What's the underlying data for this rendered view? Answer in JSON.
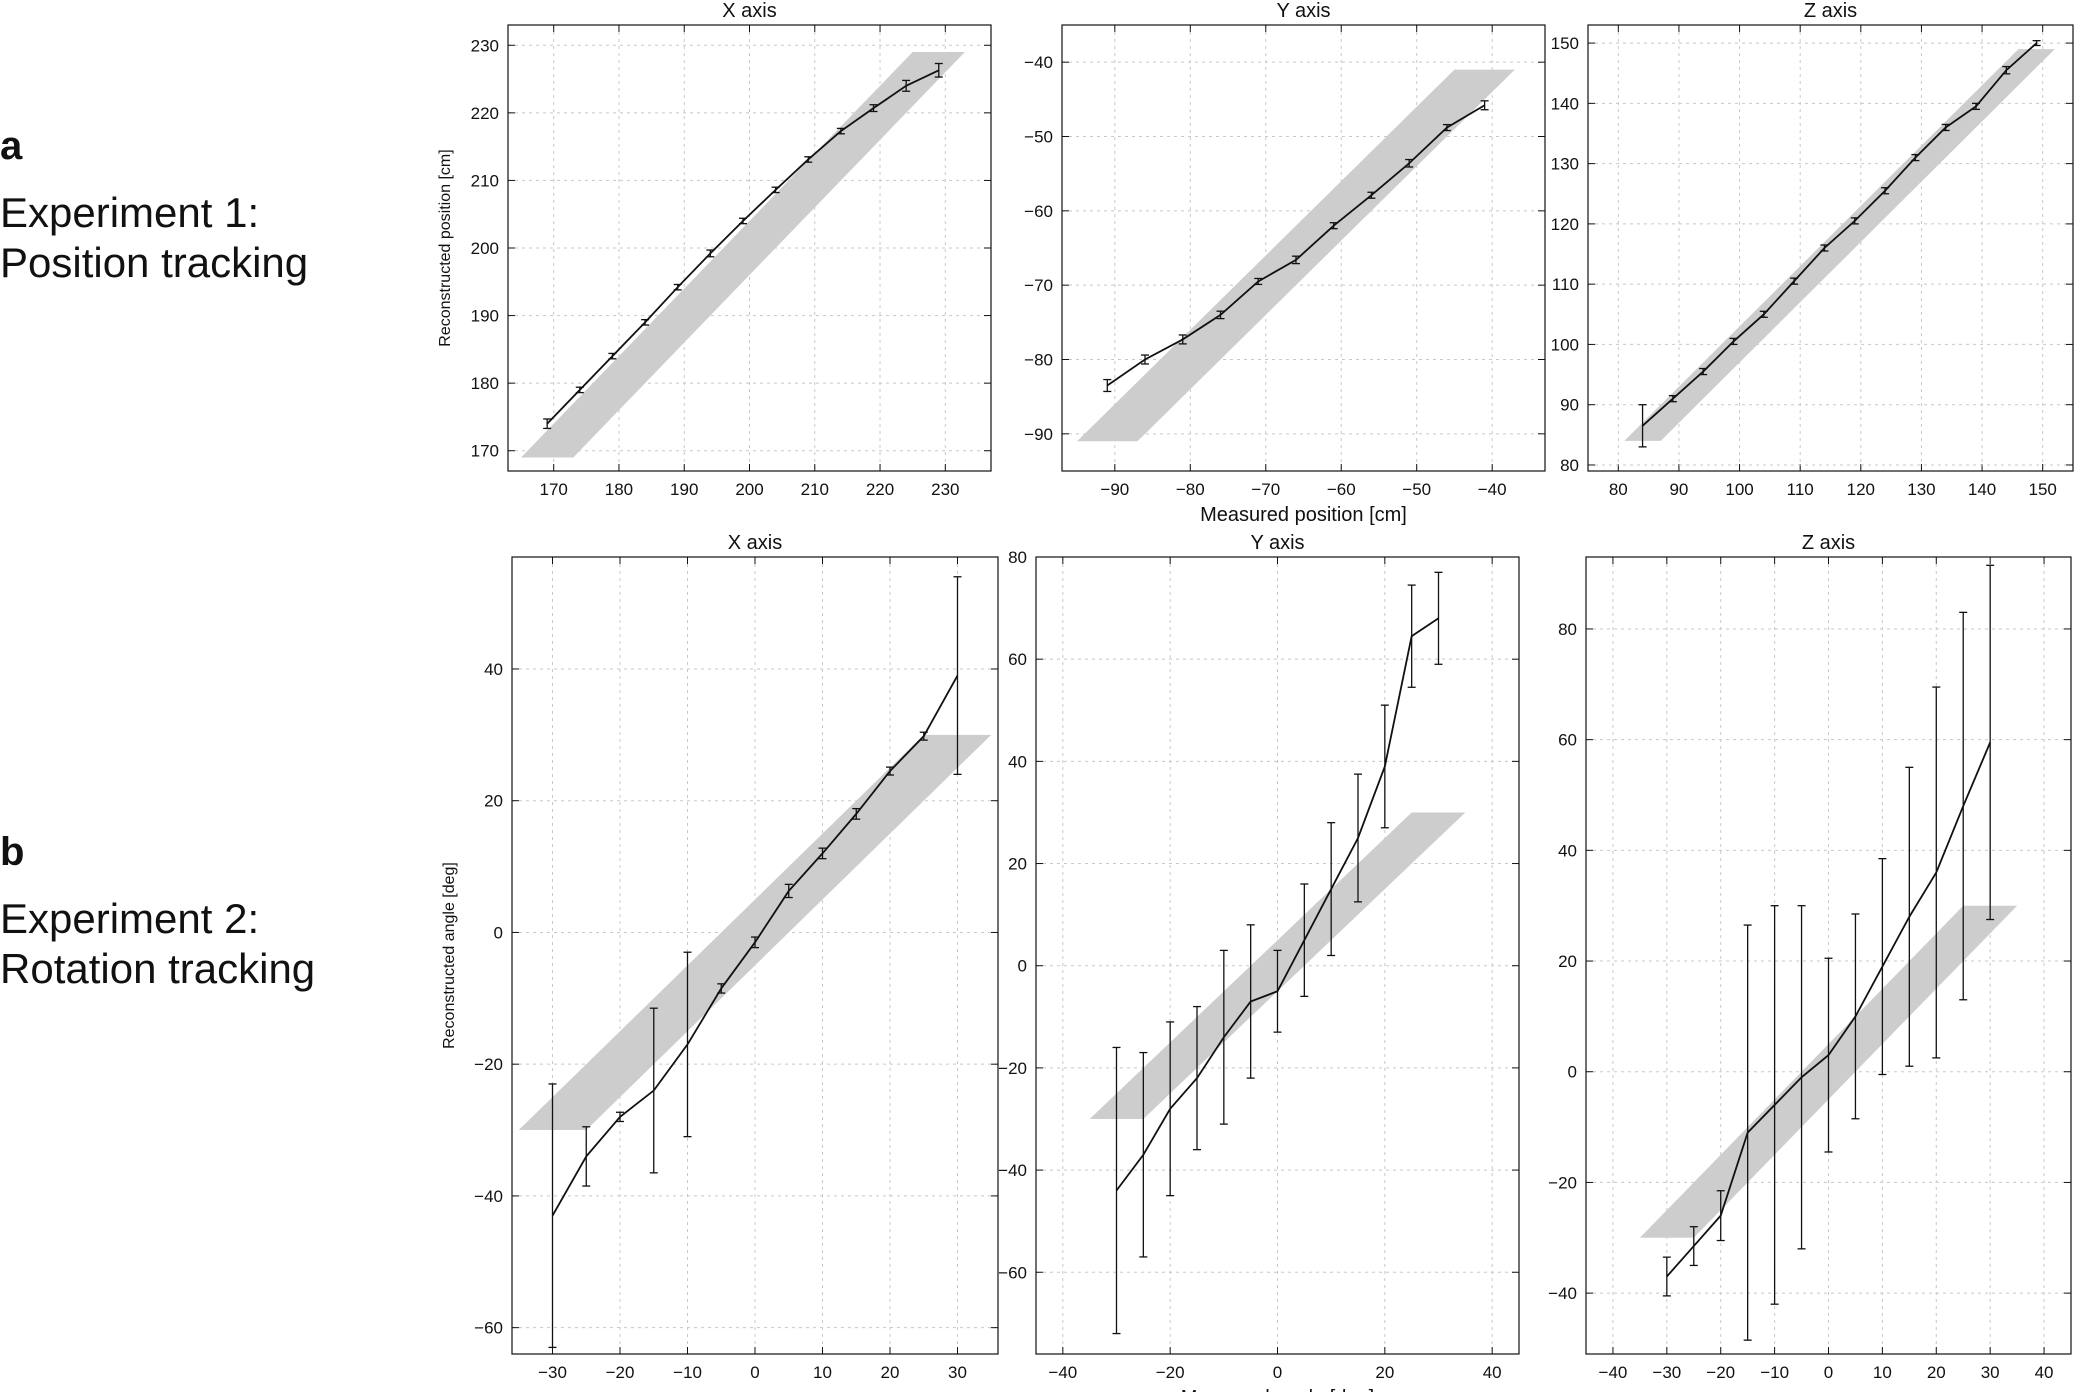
{
  "rows": [
    {
      "letter": "a",
      "line1": "Experiment 1:",
      "line2": "Position tracking"
    },
    {
      "letter": "b",
      "line1": "Experiment 2:",
      "line2": "Rotation tracking"
    }
  ],
  "chart_data": [
    {
      "type": "line",
      "title": "X axis",
      "ylabel": "Reconstructed position [cm]",
      "xlabel": "",
      "xlim": [
        163,
        237
      ],
      "ylim": [
        167,
        233
      ],
      "xticks": [
        170,
        180,
        190,
        200,
        210,
        220,
        230
      ],
      "yticks": [
        170,
        180,
        190,
        200,
        210,
        220,
        230
      ],
      "band": {
        "x": [
          169,
          229
        ],
        "y": [
          169,
          229
        ],
        "half_width_x": 4
      },
      "series": [
        {
          "name": "reconstructed",
          "x": [
            169,
            174,
            179,
            184,
            189,
            194,
            199,
            204,
            209,
            214,
            219,
            224,
            229
          ],
          "y": [
            174,
            179,
            184,
            189,
            194.2,
            199.2,
            204,
            208.6,
            213.1,
            217.3,
            220.7,
            224,
            226.3
          ],
          "err": [
            0.7,
            0.4,
            0.4,
            0.4,
            0.4,
            0.5,
            0.4,
            0.4,
            0.4,
            0.4,
            0.5,
            0.8,
            1
          ]
        }
      ]
    },
    {
      "type": "line",
      "title": "Y axis",
      "ylabel": "",
      "xlabel": "Measured position [cm]",
      "xlim": [
        -97,
        -33
      ],
      "ylim": [
        -95,
        -35
      ],
      "xticks": [
        -90,
        -80,
        -70,
        -60,
        -50,
        -40
      ],
      "yticks": [
        -90,
        -80,
        -70,
        -60,
        -50,
        -40
      ],
      "band": {
        "x": [
          -91,
          -41
        ],
        "y": [
          -91,
          -41
        ],
        "half_width_x": 4
      },
      "series": [
        {
          "name": "reconstructed",
          "x": [
            -91,
            -86,
            -81,
            -76,
            -71,
            -66,
            -61,
            -56,
            -51,
            -46,
            -41
          ],
          "y": [
            -83.5,
            -80,
            -77.3,
            -74,
            -69.5,
            -66.6,
            -62,
            -57.9,
            -53.6,
            -48.8,
            -45.8
          ],
          "err": [
            0.8,
            0.6,
            0.6,
            0.5,
            0.4,
            0.5,
            0.4,
            0.4,
            0.5,
            0.4,
            0.6
          ]
        }
      ]
    },
    {
      "type": "line",
      "title": "Z axis",
      "ylabel": "",
      "xlabel": "",
      "xlim": [
        75,
        155
      ],
      "ylim": [
        79,
        153
      ],
      "xticks": [
        80,
        90,
        100,
        110,
        120,
        130,
        140,
        150
      ],
      "yticks": [
        80,
        90,
        100,
        110,
        120,
        130,
        140,
        150
      ],
      "band": {
        "x": [
          84,
          149
        ],
        "y": [
          84,
          149
        ],
        "half_width_x": 3
      },
      "series": [
        {
          "name": "reconstructed",
          "x": [
            84,
            89,
            94,
            99,
            104,
            109,
            114,
            119,
            124,
            129,
            134,
            139,
            144,
            149
          ],
          "y": [
            86.5,
            91,
            95.5,
            100.5,
            105,
            110.5,
            116,
            120.5,
            125.5,
            131,
            136,
            139.5,
            145.5,
            150
          ],
          "err": [
            3.5,
            0.5,
            0.5,
            0.5,
            0.5,
            0.5,
            0.5,
            0.5,
            0.5,
            0.5,
            0.5,
            0.5,
            0.6,
            0.4
          ]
        }
      ]
    },
    {
      "type": "line",
      "title": "X axis",
      "ylabel": "Reconstructed angle [deg]",
      "xlabel": "",
      "xlim": [
        -36,
        36
      ],
      "ylim": [
        -64,
        57
      ],
      "xticks": [
        -30,
        -20,
        -10,
        0,
        10,
        20,
        30
      ],
      "yticks": [
        -60,
        -40,
        -20,
        0,
        20,
        40
      ],
      "band": {
        "x": [
          -30,
          30
        ],
        "y": [
          -30,
          30
        ],
        "half_width_x": 5
      },
      "series": [
        {
          "name": "reconstructed",
          "x": [
            -30,
            -25,
            -20,
            -15,
            -10,
            -5,
            0,
            5,
            10,
            15,
            20,
            25,
            30
          ],
          "y": [
            -43,
            -34,
            -28,
            -24,
            -17,
            -8.5,
            -1.5,
            6.3,
            12,
            18,
            24.5,
            29.8,
            39
          ],
          "err": [
            20,
            4.5,
            0.7,
            12.5,
            14,
            0.7,
            0.8,
            1,
            0.8,
            0.8,
            0.6,
            0.6,
            15
          ]
        }
      ]
    },
    {
      "type": "line",
      "title": "Y axis",
      "ylabel": "",
      "xlabel": "Measured angle [deg]",
      "xlim": [
        -45,
        45
      ],
      "ylim": [
        -76,
        80
      ],
      "xticks": [
        -40,
        -20,
        0,
        20,
        40
      ],
      "yticks": [
        -60,
        -40,
        -20,
        0,
        20,
        40,
        60,
        80
      ],
      "band": {
        "x": [
          -30,
          30
        ],
        "y": [
          -30,
          30
        ],
        "half_width_x": 5
      },
      "series": [
        {
          "name": "reconstructed",
          "x": [
            -30,
            -25,
            -20,
            -15,
            -10,
            -5,
            0,
            5,
            10,
            15,
            20,
            25,
            30
          ],
          "y": [
            -44,
            -37,
            -28,
            -22,
            -14,
            -7,
            -5,
            5,
            15,
            25,
            39,
            64.5,
            68
          ],
          "err": [
            28,
            20,
            17,
            14,
            17,
            15,
            8,
            11,
            13,
            12.5,
            12,
            10,
            9
          ]
        }
      ]
    },
    {
      "type": "line",
      "title": "Z axis",
      "ylabel": "",
      "xlabel": "",
      "xlim": [
        -45,
        45
      ],
      "ylim": [
        -51,
        93
      ],
      "xticks": [
        -40,
        -30,
        -20,
        -10,
        0,
        10,
        20,
        30,
        40
      ],
      "yticks": [
        -40,
        -20,
        0,
        20,
        40,
        60,
        80
      ],
      "band": {
        "x": [
          -30,
          30
        ],
        "y": [
          -30,
          30
        ],
        "half_width_x": 5
      },
      "series": [
        {
          "name": "reconstructed",
          "x": [
            -30,
            -25,
            -20,
            -15,
            -10,
            -5,
            0,
            5,
            10,
            15,
            20,
            25,
            30
          ],
          "y": [
            -37,
            -31.5,
            -26,
            -11,
            -6,
            -1,
            3,
            10,
            19,
            28,
            36,
            48,
            59.5
          ],
          "err": [
            3.5,
            3.5,
            4.5,
            37.5,
            36,
            31,
            17.5,
            18.5,
            19.5,
            27,
            33.5,
            35,
            32
          ]
        }
      ]
    }
  ]
}
